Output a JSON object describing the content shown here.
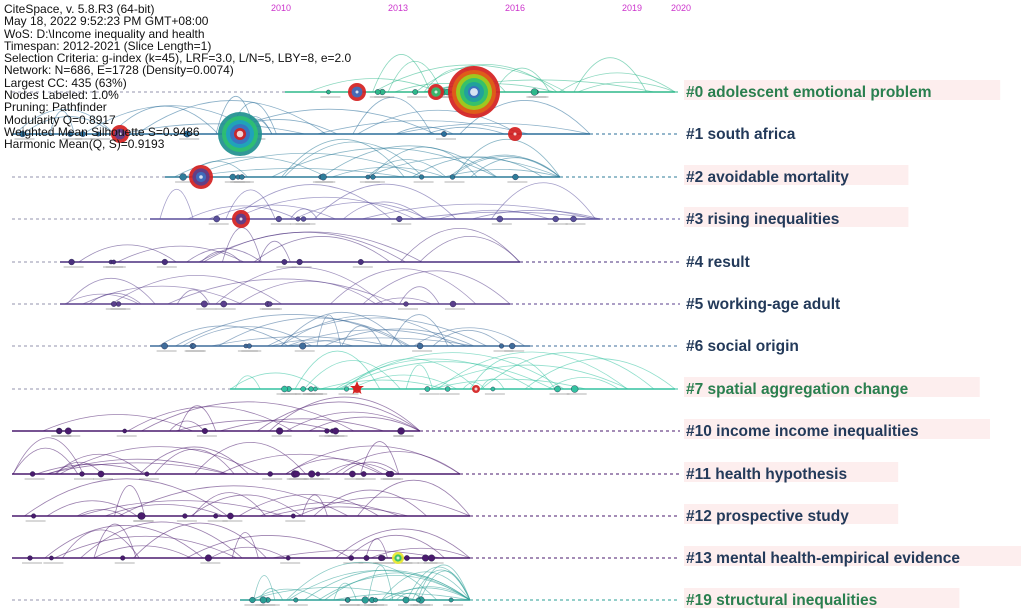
{
  "meta": {
    "lines": [
      "CiteSpace, v. 5.8.R3 (64-bit)",
      "May 18, 2022 9:52:23 PM GMT+08:00",
      "WoS: D:\\Income inequality and health",
      "Timespan: 2012-2021 (Slice Length=1)",
      "Selection Criteria: g-index (k=45), LRF=3.0, L/N=5, LBY=8, e=2.0",
      "Network: N=686, E=1728 (Density=0.0074)",
      "Largest CC: 435 (63%)",
      "Nodes Labeled: 1.0%",
      "Pruning: Pathfinder",
      "Modularity Q=0.8917",
      "Weighted Mean Silhouette S=0.9486",
      "Harmonic Mean(Q, S)=0.9193"
    ]
  },
  "years": [
    "2010",
    "2013",
    "2016",
    "2019",
    "2020"
  ],
  "colors": {
    "cyan_green": "#2eb88a",
    "teal": "#1f8f8f",
    "steel_blue": "#3f6d9b",
    "purple": "#5a3f8c",
    "deep_purple": "#4a1a6e",
    "cluster_label_green": "#2a7f4f",
    "cluster_label_navy": "#233a5a",
    "label_highlight": "#fdeeee",
    "year_magenta": "#cc33cc"
  },
  "clusters": [
    {
      "label": "#0 adolescent emotional problem",
      "color": "#2eb88a",
      "label_color": "#2a7f4f",
      "highlight": true
    },
    {
      "label": "#1 south africa",
      "color": "#2b6f9a",
      "label_color": "#233a5a",
      "highlight": false
    },
    {
      "label": "#2 avoidable mortality",
      "color": "#2f7d9a",
      "label_color": "#233a5a",
      "highlight": true
    },
    {
      "label": "#3 rising inequalities",
      "color": "#5a4f9c",
      "label_color": "#233a5a",
      "highlight": true
    },
    {
      "label": "#4 result",
      "color": "#4a2f7e",
      "label_color": "#233a5a",
      "highlight": false
    },
    {
      "label": "#5 working-age adult",
      "color": "#5a3f8c",
      "label_color": "#233a5a",
      "highlight": false
    },
    {
      "label": "#6 social origin",
      "color": "#3f6d9b",
      "label_color": "#233a5a",
      "highlight": false
    },
    {
      "label": "#7 spatial aggregation change",
      "color": "#33c2a0",
      "label_color": "#2a7f4f",
      "highlight": true
    },
    {
      "label": "#10 income income inequalities",
      "color": "#4a1a6e",
      "label_color": "#233a5a",
      "highlight": true
    },
    {
      "label": "#11 health hypothesis",
      "color": "#4a1a6e",
      "label_color": "#233a5a",
      "highlight": true
    },
    {
      "label": "#12 prospective study",
      "color": "#4a1a6e",
      "label_color": "#233a5a",
      "highlight": true
    },
    {
      "label": "#13 mental health-empirical evidence",
      "color": "#4a1a6e",
      "label_color": "#233a5a",
      "highlight": true
    },
    {
      "label": "#19 structural inequalities",
      "color": "#2a9f95",
      "label_color": "#2a7f4f",
      "highlight": true
    }
  ]
}
